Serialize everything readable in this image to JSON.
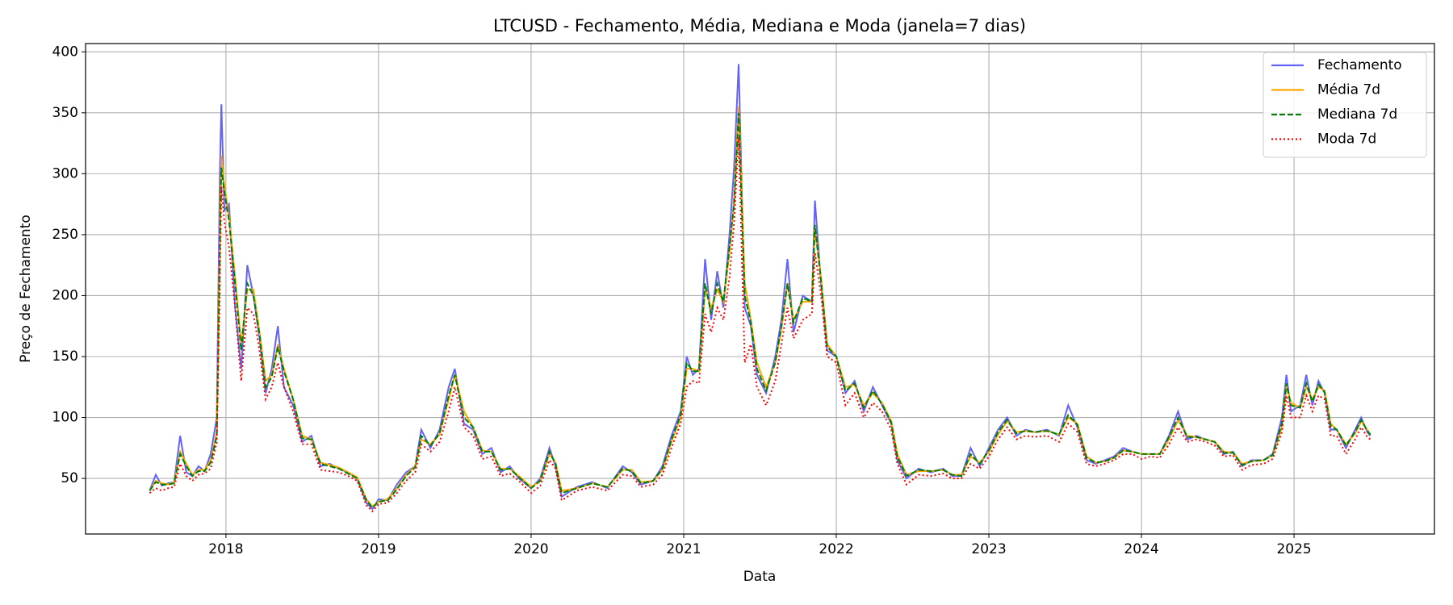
{
  "chart_data": {
    "type": "line",
    "title": "LTCUSD - Fechamento, Média, Mediana e Moda (janela=7 dias)",
    "x_label": "Data",
    "y_label": "Preço de Fechamento",
    "x": [
      2017.5,
      2017.54,
      2017.58,
      2017.62,
      2017.66,
      2017.7,
      2017.74,
      2017.78,
      2017.82,
      2017.86,
      2017.9,
      2017.94,
      2017.96,
      2017.97,
      2017.99,
      2018.02,
      2018.06,
      2018.1,
      2018.14,
      2018.18,
      2018.22,
      2018.26,
      2018.3,
      2018.34,
      2018.38,
      2018.44,
      2018.5,
      2018.56,
      2018.62,
      2018.68,
      2018.74,
      2018.8,
      2018.86,
      2018.92,
      2018.96,
      2019.0,
      2019.06,
      2019.12,
      2019.18,
      2019.24,
      2019.28,
      2019.34,
      2019.4,
      2019.46,
      2019.5,
      2019.56,
      2019.62,
      2019.68,
      2019.74,
      2019.8,
      2019.86,
      2019.92,
      2020.0,
      2020.06,
      2020.12,
      2020.16,
      2020.2,
      2020.3,
      2020.4,
      2020.5,
      2020.6,
      2020.66,
      2020.72,
      2020.8,
      2020.86,
      2020.92,
      2020.98,
      2021.02,
      2021.06,
      2021.1,
      2021.14,
      2021.18,
      2021.22,
      2021.26,
      2021.3,
      2021.33,
      2021.36,
      2021.4,
      2021.44,
      2021.48,
      2021.54,
      2021.6,
      2021.64,
      2021.68,
      2021.72,
      2021.78,
      2021.84,
      2021.86,
      2021.9,
      2021.94,
      2022.0,
      2022.06,
      2022.12,
      2022.18,
      2022.24,
      2022.3,
      2022.36,
      2022.4,
      2022.46,
      2022.54,
      2022.62,
      2022.7,
      2022.76,
      2022.82,
      2022.88,
      2022.94,
      2023.0,
      2023.06,
      2023.12,
      2023.18,
      2023.24,
      2023.3,
      2023.38,
      2023.46,
      2023.52,
      2023.58,
      2023.64,
      2023.7,
      2023.76,
      2023.82,
      2023.88,
      2023.94,
      2024.0,
      2024.06,
      2024.12,
      2024.18,
      2024.24,
      2024.3,
      2024.36,
      2024.42,
      2024.48,
      2024.54,
      2024.6,
      2024.66,
      2024.72,
      2024.8,
      2024.86,
      2024.92,
      2024.95,
      2024.98,
      2025.04,
      2025.08,
      2025.12,
      2025.16,
      2025.2,
      2025.24,
      2025.28,
      2025.34,
      2025.4,
      2025.44,
      2025.48,
      2025.5
    ],
    "series": [
      {
        "name": "Fechamento",
        "color": "#6363f7",
        "linestyle": "solid",
        "values": [
          40,
          53,
          44,
          46,
          47,
          85,
          55,
          52,
          60,
          56,
          70,
          100,
          300,
          357,
          270,
          275,
          190,
          140,
          225,
          200,
          165,
          120,
          140,
          175,
          125,
          110,
          80,
          85,
          60,
          62,
          58,
          55,
          50,
          30,
          25,
          33,
          32,
          45,
          55,
          60,
          90,
          75,
          90,
          125,
          140,
          95,
          90,
          70,
          75,
          55,
          60,
          50,
          42,
          50,
          75,
          60,
          35,
          43,
          47,
          42,
          60,
          55,
          45,
          48,
          60,
          85,
          105,
          150,
          135,
          140,
          230,
          180,
          220,
          190,
          250,
          305,
          390,
          190,
          175,
          135,
          120,
          150,
          180,
          230,
          170,
          200,
          195,
          278,
          210,
          155,
          150,
          120,
          130,
          105,
          125,
          110,
          95,
          65,
          50,
          58,
          55,
          58,
          52,
          52,
          75,
          60,
          75,
          90,
          100,
          85,
          90,
          88,
          90,
          85,
          110,
          92,
          65,
          62,
          65,
          68,
          75,
          72,
          70,
          70,
          70,
          85,
          105,
          82,
          85,
          82,
          80,
          70,
          72,
          60,
          65,
          65,
          70,
          100,
          135,
          105,
          110,
          135,
          110,
          130,
          120,
          90,
          90,
          75,
          90,
          100,
          88,
          85
        ]
      },
      {
        "name": "Média 7d",
        "color": "#ffa500",
        "linestyle": "solid",
        "values": [
          40,
          48,
          46,
          45,
          47,
          72,
          62,
          53,
          57,
          57,
          65,
          88,
          250,
          315,
          290,
          265,
          215,
          160,
          205,
          205,
          170,
          130,
          135,
          160,
          140,
          115,
          85,
          82,
          63,
          61,
          59,
          55,
          51,
          33,
          27,
          31,
          33,
          42,
          53,
          60,
          82,
          78,
          86,
          115,
          135,
          105,
          92,
          73,
          72,
          58,
          58,
          52,
          43,
          48,
          70,
          63,
          40,
          42,
          46,
          43,
          57,
          57,
          47,
          48,
          57,
          80,
          100,
          140,
          140,
          138,
          205,
          190,
          205,
          195,
          235,
          280,
          355,
          210,
          180,
          145,
          125,
          145,
          172,
          210,
          180,
          195,
          195,
          255,
          215,
          160,
          150,
          125,
          127,
          110,
          120,
          112,
          97,
          70,
          53,
          56,
          56,
          57,
          53,
          53,
          68,
          63,
          72,
          86,
          97,
          88,
          89,
          88,
          89,
          86,
          100,
          95,
          68,
          63,
          64,
          67,
          73,
          72,
          70,
          70,
          70,
          82,
          98,
          85,
          84,
          82,
          80,
          72,
          71,
          62,
          64,
          65,
          69,
          92,
          125,
          112,
          108,
          125,
          115,
          125,
          122,
          95,
          90,
          78,
          87,
          97,
          90,
          86
        ]
      },
      {
        "name": "Mediana 7d",
        "color": "#008000",
        "linestyle": "dashed",
        "values": [
          40,
          47,
          45,
          45,
          46,
          70,
          60,
          52,
          56,
          56,
          63,
          85,
          240,
          305,
          285,
          262,
          210,
          155,
          210,
          200,
          168,
          125,
          133,
          158,
          138,
          115,
          83,
          82,
          62,
          60,
          58,
          54,
          50,
          32,
          26,
          31,
          32,
          41,
          52,
          59,
          85,
          77,
          87,
          118,
          135,
          100,
          92,
          72,
          72,
          57,
          58,
          51,
          42,
          48,
          72,
          62,
          38,
          42,
          46,
          43,
          58,
          56,
          46,
          48,
          58,
          82,
          102,
          145,
          138,
          138,
          210,
          185,
          210,
          195,
          240,
          275,
          350,
          200,
          178,
          140,
          122,
          145,
          175,
          210,
          178,
          198,
          195,
          258,
          212,
          158,
          150,
          122,
          128,
          108,
          122,
          111,
          96,
          68,
          52,
          57,
          56,
          57,
          53,
          52,
          70,
          62,
          73,
          88,
          98,
          87,
          89,
          88,
          89,
          86,
          102,
          94,
          67,
          63,
          64,
          67,
          73,
          72,
          70,
          70,
          70,
          84,
          100,
          84,
          84,
          82,
          80,
          71,
          71,
          61,
          64,
          65,
          69,
          95,
          128,
          110,
          108,
          128,
          113,
          127,
          121,
          93,
          90,
          77,
          88,
          98,
          89,
          86
        ]
      },
      {
        "name": "Moda 7d",
        "color": "#ff0000",
        "linestyle": "dotted",
        "values": [
          38,
          42,
          40,
          42,
          43,
          62,
          52,
          48,
          53,
          54,
          58,
          80,
          210,
          290,
          260,
          240,
          190,
          130,
          190,
          185,
          155,
          115,
          125,
          145,
          125,
          105,
          78,
          78,
          57,
          56,
          55,
          52,
          48,
          28,
          23,
          29,
          30,
          38,
          48,
          55,
          78,
          72,
          80,
          105,
          125,
          92,
          85,
          66,
          68,
          52,
          54,
          48,
          38,
          44,
          65,
          58,
          32,
          40,
          43,
          40,
          53,
          52,
          43,
          45,
          53,
          75,
          95,
          125,
          130,
          128,
          185,
          170,
          190,
          180,
          215,
          260,
          330,
          145,
          160,
          125,
          110,
          130,
          160,
          190,
          165,
          180,
          185,
          235,
          200,
          150,
          145,
          110,
          120,
          100,
          112,
          105,
          90,
          62,
          45,
          53,
          52,
          54,
          50,
          50,
          62,
          58,
          68,
          82,
          92,
          82,
          85,
          84,
          85,
          80,
          95,
          88,
          62,
          60,
          62,
          65,
          70,
          70,
          66,
          68,
          67,
          78,
          92,
          80,
          82,
          80,
          77,
          68,
          69,
          57,
          61,
          62,
          66,
          88,
          118,
          100,
          100,
          118,
          105,
          118,
          115,
          85,
          85,
          70,
          82,
          92,
          84,
          82
        ]
      }
    ],
    "xlim": [
      2017.08,
      2025.92
    ],
    "ylim": [
      4.4,
      406.8
    ],
    "xticks": [
      2018,
      2019,
      2020,
      2021,
      2022,
      2023,
      2024,
      2025
    ],
    "yticks": [
      50,
      100,
      150,
      200,
      250,
      300,
      350,
      400
    ],
    "grid": true,
    "legend": "upper right"
  }
}
